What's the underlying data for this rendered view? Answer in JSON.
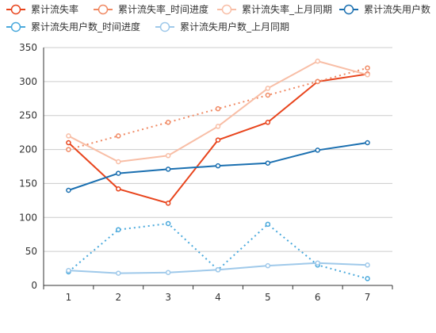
{
  "chart_data": {
    "type": "line",
    "x": [
      1,
      2,
      3,
      4,
      5,
      6,
      7
    ],
    "ylim": [
      0,
      350
    ],
    "yticks": [
      0,
      50,
      100,
      150,
      200,
      250,
      300,
      350
    ],
    "grid": true,
    "legend_position": "top",
    "series": [
      {
        "name": "累计流失率",
        "values": [
          210,
          142,
          121,
          214,
          240,
          300,
          311
        ],
        "color": "#e8441c",
        "dashed": false
      },
      {
        "name": "累计流失率_时间进度",
        "values": [
          200,
          220,
          240,
          260,
          280,
          300,
          320
        ],
        "color": "#f08a64",
        "dashed": true
      },
      {
        "name": "累计流失率_上月同期",
        "values": [
          220,
          182,
          191,
          234,
          290,
          330,
          310
        ],
        "color": "#f8bea6",
        "dashed": false
      },
      {
        "name": "累计流失用户数",
        "values": [
          140,
          165,
          171,
          176,
          180,
          199,
          210
        ],
        "color": "#1a6fb0",
        "dashed": false
      },
      {
        "name": "累计流失用户数_时间进度",
        "values": [
          20,
          82,
          91,
          23,
          90,
          30,
          10
        ],
        "color": "#4aa9dc",
        "dashed": true
      },
      {
        "name": "累计流失用户数_上月同期",
        "values": [
          22,
          18,
          19,
          23,
          29,
          33,
          30
        ],
        "color": "#9fc9ea",
        "dashed": false
      }
    ]
  }
}
